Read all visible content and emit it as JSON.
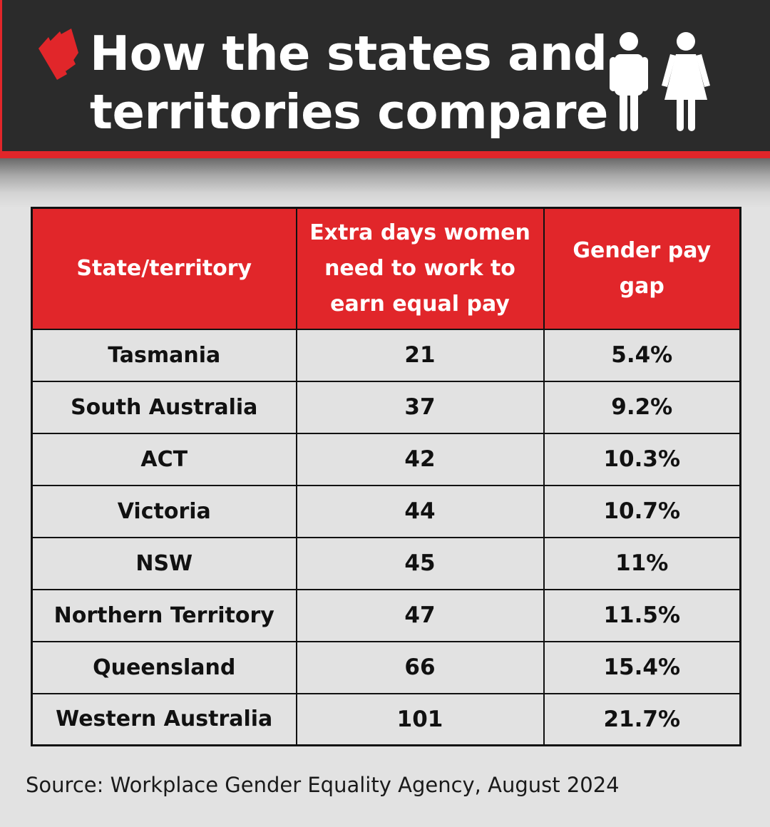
{
  "title_lines": [
    "How the states and",
    "territories compare"
  ],
  "icons": {
    "logo": "sbs-logo-icon",
    "people": "man-and-woman-icon"
  },
  "colors": {
    "accent": "#e1262a",
    "header_bg": "#2b2b2b",
    "page_bg": "#e2e2e2"
  },
  "chart_data": {
    "type": "table",
    "title": "How the states and territories compare",
    "columns": [
      "State/territory",
      "Extra days women need to work to earn equal pay",
      "Gender pay gap"
    ],
    "rows": [
      {
        "state": "Tasmania",
        "extra_days": "21",
        "pay_gap": "5.4%"
      },
      {
        "state": "South Australia",
        "extra_days": "37",
        "pay_gap": "9.2%"
      },
      {
        "state": "ACT",
        "extra_days": "42",
        "pay_gap": "10.3%"
      },
      {
        "state": "Victoria",
        "extra_days": "44",
        "pay_gap": "10.7%"
      },
      {
        "state": "NSW",
        "extra_days": "45",
        "pay_gap": "11%"
      },
      {
        "state": "Northern Territory",
        "extra_days": "47",
        "pay_gap": "11.5%"
      },
      {
        "state": "Queensland",
        "extra_days": "66",
        "pay_gap": "15.4%"
      },
      {
        "state": "Western Australia",
        "extra_days": "101",
        "pay_gap": "21.7%"
      }
    ]
  },
  "source": "Source: Workplace Gender Equality Agency, August 2024"
}
